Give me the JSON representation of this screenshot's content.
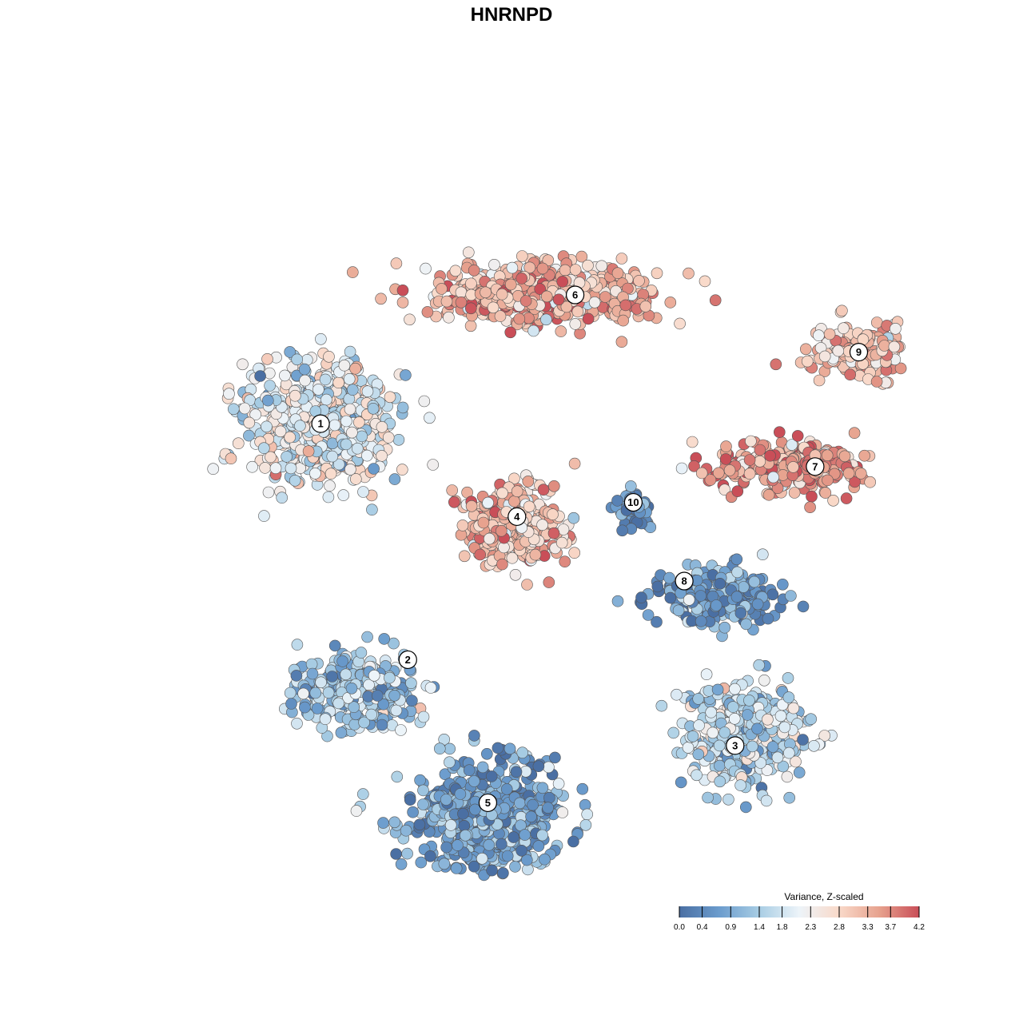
{
  "chart_data": {
    "type": "scatter",
    "title": "HNRNPD",
    "xlabel": "",
    "ylabel": "",
    "grid": false,
    "legend_placement": "bottom-right",
    "color_scale": {
      "title": "Variance, Z-scaled",
      "range": [
        0.0,
        4.2
      ],
      "ticks": [
        0.0,
        0.4,
        0.9,
        1.4,
        1.8,
        2.3,
        2.8,
        3.3,
        3.7,
        4.2
      ],
      "tick_labels": [
        "0.0",
        "0.4",
        "0.9",
        "1.4",
        "1.8",
        "2.3",
        "2.8",
        "3.3",
        "3.7",
        "4.2"
      ],
      "colors": [
        "#4a6fa3",
        "#6b9ccd",
        "#a8cde4",
        "#edf4f9",
        "#f9d9c9",
        "#e7a28e",
        "#c94e58"
      ]
    },
    "clusters": [
      {
        "label": "1",
        "x": 0.21,
        "y": 0.62,
        "mean": 2.05
      },
      {
        "label": "2",
        "x": 0.33,
        "y": 0.29,
        "mean": 1.35
      },
      {
        "label": "3",
        "x": 0.78,
        "y": 0.17,
        "mean": 1.65
      },
      {
        "label": "4",
        "x": 0.48,
        "y": 0.49,
        "mean": 3.05
      },
      {
        "label": "5",
        "x": 0.44,
        "y": 0.09,
        "mean": 0.75
      },
      {
        "label": "6",
        "x": 0.56,
        "y": 0.8,
        "mean": 3.2
      },
      {
        "label": "7",
        "x": 0.89,
        "y": 0.56,
        "mean": 3.55
      },
      {
        "label": "8",
        "x": 0.71,
        "y": 0.4,
        "mean": 0.65
      },
      {
        "label": "9",
        "x": 0.95,
        "y": 0.72,
        "mean": 3.05
      },
      {
        "label": "10",
        "x": 0.64,
        "y": 0.51,
        "mean": 0.55
      }
    ]
  }
}
